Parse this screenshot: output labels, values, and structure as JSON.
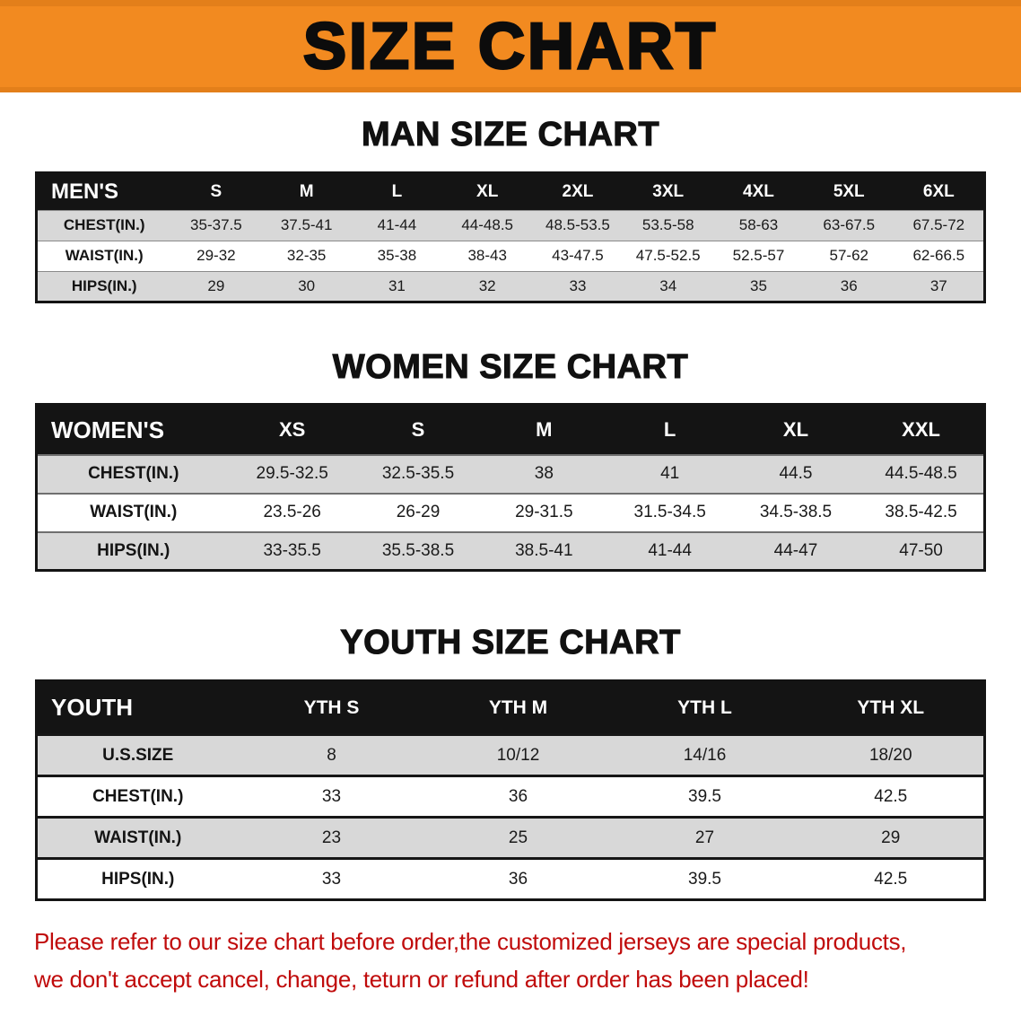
{
  "banner": {
    "title": "SIZE CHART",
    "bg_color": "#f28a20"
  },
  "tables": {
    "men": {
      "heading": "MAN SIZE CHART",
      "header": [
        "MEN'S",
        "S",
        "M",
        "L",
        "XL",
        "2XL",
        "3XL",
        "4XL",
        "5XL",
        "6XL"
      ],
      "rows": [
        {
          "label": "CHEST(IN.)",
          "values": [
            "35-37.5",
            "37.5-41",
            "41-44",
            "44-48.5",
            "48.5-53.5",
            "53.5-58",
            "58-63",
            "63-67.5",
            "67.5-72"
          ]
        },
        {
          "label": "WAIST(IN.)",
          "values": [
            "29-32",
            "32-35",
            "35-38",
            "38-43",
            "43-47.5",
            "47.5-52.5",
            "52.5-57",
            "57-62",
            "62-66.5"
          ]
        },
        {
          "label": "HIPS(IN.)",
          "values": [
            "29",
            "30",
            "31",
            "32",
            "33",
            "34",
            "35",
            "36",
            "37"
          ]
        }
      ]
    },
    "women": {
      "heading": "WOMEN SIZE CHART",
      "header": [
        "WOMEN'S",
        "XS",
        "S",
        "M",
        "L",
        "XL",
        "XXL"
      ],
      "rows": [
        {
          "label": "CHEST(IN.)",
          "values": [
            "29.5-32.5",
            "32.5-35.5",
            "38",
            "41",
            "44.5",
            "44.5-48.5"
          ]
        },
        {
          "label": "WAIST(IN.)",
          "values": [
            "23.5-26",
            "26-29",
            "29-31.5",
            "31.5-34.5",
            "34.5-38.5",
            "38.5-42.5"
          ]
        },
        {
          "label": "HIPS(IN.)",
          "values": [
            "33-35.5",
            "35.5-38.5",
            "38.5-41",
            "41-44",
            "44-47",
            "47-50"
          ]
        }
      ]
    },
    "youth": {
      "heading": "YOUTH SIZE CHART",
      "header": [
        "YOUTH",
        "YTH S",
        "YTH M",
        "YTH L",
        "YTH XL"
      ],
      "rows": [
        {
          "label": "U.S.SIZE",
          "values": [
            "8",
            "10/12",
            "14/16",
            "18/20"
          ]
        },
        {
          "label": "CHEST(IN.)",
          "values": [
            "33",
            "36",
            "39.5",
            "42.5"
          ]
        },
        {
          "label": "WAIST(IN.)",
          "values": [
            "23",
            "25",
            "27",
            "29"
          ]
        },
        {
          "label": "HIPS(IN.)",
          "values": [
            "33",
            "36",
            "39.5",
            "42.5"
          ]
        }
      ]
    }
  },
  "notice": {
    "line1": "Please refer to our size chart before order,the customized jerseys are special products,",
    "line2": "we don't accept cancel, change, teturn or refund after order has been placed!",
    "color": "#c00b0b"
  }
}
